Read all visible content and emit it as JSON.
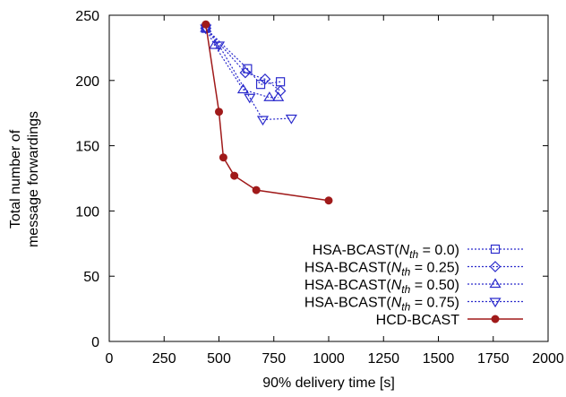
{
  "chart_data": {
    "type": "line",
    "title": "",
    "xlabel": "90% delivery time [s]",
    "ylabel": [
      "Total number of",
      "message forwardings"
    ],
    "xlim": [
      0,
      2000
    ],
    "ylim": [
      0,
      250
    ],
    "xticks": [
      0,
      250,
      500,
      750,
      1000,
      1250,
      1500,
      1750,
      2000
    ],
    "yticks": [
      0,
      50,
      100,
      150,
      200,
      250
    ],
    "grid": false,
    "legend_position": "bottom-right",
    "series": [
      {
        "name_prefix": "HSA-BCAST(",
        "name_var": "N",
        "name_sub": "th",
        "name_suffix": " = 0.0)",
        "color": "#2b2bcc",
        "dashed": true,
        "marker": "square",
        "points": [
          [
            440,
            240
          ],
          [
            630,
            209
          ],
          [
            690,
            197
          ],
          [
            780,
            199
          ]
        ]
      },
      {
        "name_prefix": "HSA-BCAST(",
        "name_var": "N",
        "name_sub": "th",
        "name_suffix": " = 0.25)",
        "color": "#2b2bcc",
        "dashed": true,
        "marker": "diamond",
        "points": [
          [
            440,
            240
          ],
          [
            620,
            206
          ],
          [
            710,
            201
          ],
          [
            780,
            192
          ]
        ]
      },
      {
        "name_prefix": "HSA-BCAST(",
        "name_var": "N",
        "name_sub": "th",
        "name_suffix": " = 0.50)",
        "color": "#2b2bcc",
        "dashed": true,
        "marker": "triangle-up",
        "points": [
          [
            440,
            240
          ],
          [
            480,
            227
          ],
          [
            610,
            193
          ],
          [
            730,
            187
          ],
          [
            770,
            187
          ]
        ]
      },
      {
        "name_prefix": "HSA-BCAST(",
        "name_var": "N",
        "name_sub": "th",
        "name_suffix": " = 0.75)",
        "color": "#2b2bcc",
        "dashed": true,
        "marker": "triangle-down",
        "points": [
          [
            440,
            240
          ],
          [
            500,
            227
          ],
          [
            640,
            187
          ],
          [
            700,
            170
          ],
          [
            830,
            171
          ]
        ]
      },
      {
        "name": "HCD-BCAST",
        "color": "#a01a1a",
        "dashed": false,
        "marker": "circle",
        "points": [
          [
            440,
            243
          ],
          [
            500,
            176
          ],
          [
            520,
            141
          ],
          [
            570,
            127
          ],
          [
            670,
            116
          ],
          [
            1000,
            108
          ]
        ]
      }
    ]
  }
}
